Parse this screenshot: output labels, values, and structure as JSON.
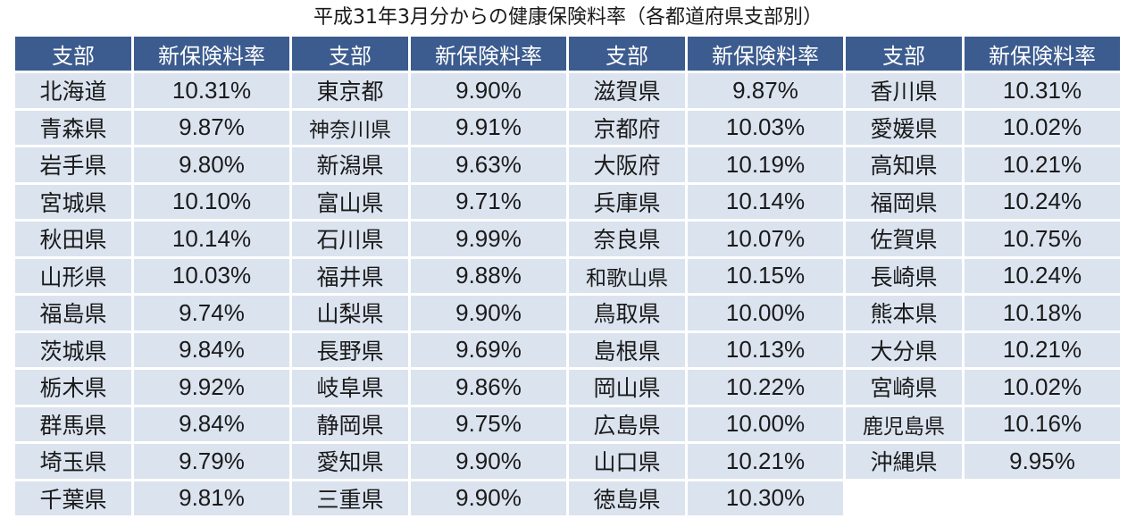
{
  "title": "平成31年3月分からの健康保険料率（各都道府県支部別）",
  "headers": {
    "branch": "支部",
    "rate": "新保険料率"
  },
  "columns": [
    {
      "rows": [
        {
          "branch": "北海道",
          "rate": "10.31%"
        },
        {
          "branch": "青森県",
          "rate": "9.87%"
        },
        {
          "branch": "岩手県",
          "rate": "9.80%"
        },
        {
          "branch": "宮城県",
          "rate": "10.10%"
        },
        {
          "branch": "秋田県",
          "rate": "10.14%"
        },
        {
          "branch": "山形県",
          "rate": "10.03%"
        },
        {
          "branch": "福島県",
          "rate": "9.74%"
        },
        {
          "branch": "茨城県",
          "rate": "9.84%"
        },
        {
          "branch": "栃木県",
          "rate": "9.92%"
        },
        {
          "branch": "群馬県",
          "rate": "9.84%"
        },
        {
          "branch": "埼玉県",
          "rate": "9.79%"
        },
        {
          "branch": "千葉県",
          "rate": "9.81%"
        }
      ]
    },
    {
      "rows": [
        {
          "branch": "東京都",
          "rate": "9.90%"
        },
        {
          "branch": "神奈川県",
          "rate": "9.91%"
        },
        {
          "branch": "新潟県",
          "rate": "9.63%"
        },
        {
          "branch": "富山県",
          "rate": "9.71%"
        },
        {
          "branch": "石川県",
          "rate": "9.99%"
        },
        {
          "branch": "福井県",
          "rate": "9.88%"
        },
        {
          "branch": "山梨県",
          "rate": "9.90%"
        },
        {
          "branch": "長野県",
          "rate": "9.69%"
        },
        {
          "branch": "岐阜県",
          "rate": "9.86%"
        },
        {
          "branch": "静岡県",
          "rate": "9.75%"
        },
        {
          "branch": "愛知県",
          "rate": "9.90%"
        },
        {
          "branch": "三重県",
          "rate": "9.90%"
        }
      ]
    },
    {
      "rows": [
        {
          "branch": "滋賀県",
          "rate": "9.87%"
        },
        {
          "branch": "京都府",
          "rate": "10.03%"
        },
        {
          "branch": "大阪府",
          "rate": "10.19%"
        },
        {
          "branch": "兵庫県",
          "rate": "10.14%"
        },
        {
          "branch": "奈良県",
          "rate": "10.07%"
        },
        {
          "branch": "和歌山県",
          "rate": "10.15%"
        },
        {
          "branch": "鳥取県",
          "rate": "10.00%"
        },
        {
          "branch": "島根県",
          "rate": "10.13%"
        },
        {
          "branch": "岡山県",
          "rate": "10.22%"
        },
        {
          "branch": "広島県",
          "rate": "10.00%"
        },
        {
          "branch": "山口県",
          "rate": "10.21%"
        },
        {
          "branch": "徳島県",
          "rate": "10.30%"
        }
      ]
    },
    {
      "rows": [
        {
          "branch": "香川県",
          "rate": "10.31%"
        },
        {
          "branch": "愛媛県",
          "rate": "10.02%"
        },
        {
          "branch": "高知県",
          "rate": "10.21%"
        },
        {
          "branch": "福岡県",
          "rate": "10.24%"
        },
        {
          "branch": "佐賀県",
          "rate": "10.75%"
        },
        {
          "branch": "長崎県",
          "rate": "10.24%"
        },
        {
          "branch": "熊本県",
          "rate": "10.18%"
        },
        {
          "branch": "大分県",
          "rate": "10.21%"
        },
        {
          "branch": "宮崎県",
          "rate": "10.02%"
        },
        {
          "branch": "鹿児島県",
          "rate": "10.16%"
        },
        {
          "branch": "沖縄県",
          "rate": "9.95%"
        }
      ]
    }
  ],
  "colors": {
    "header_bg": "#3c5c8f",
    "header_text": "#ffffff",
    "cell_bg": "#dbe3ef"
  }
}
